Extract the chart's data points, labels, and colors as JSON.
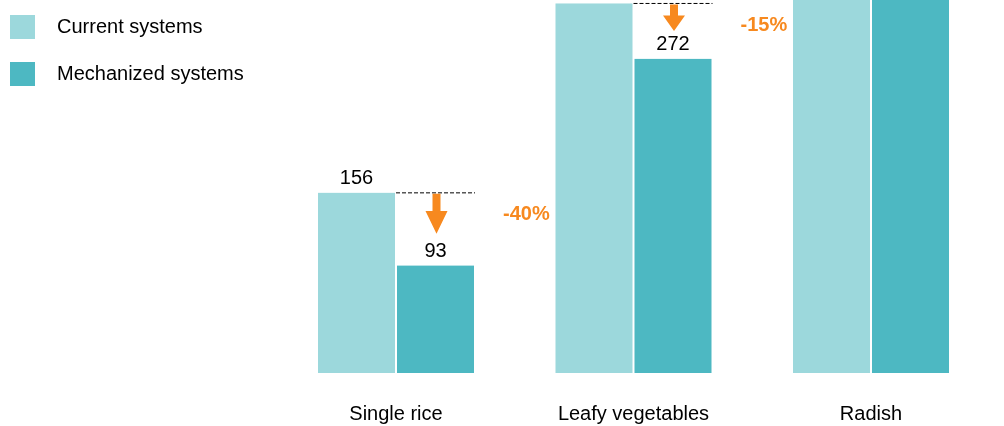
{
  "chart_data": {
    "type": "bar",
    "categories": [
      "Single rice",
      "Leafy vegetables",
      "Radish"
    ],
    "series": [
      {
        "name": "Current systems",
        "color": "#9cd8dc",
        "values": [
          156,
          320,
          323
        ],
        "value_labels": [
          "156",
          null,
          null
        ]
      },
      {
        "name": "Mechanized systems",
        "color": "#4db8c2",
        "values": [
          93,
          272,
          323
        ],
        "value_labels": [
          "93",
          "272",
          null
        ]
      }
    ],
    "ylim": [
      0,
      323
    ],
    "tick_labels": "x",
    "legend": "top left",
    "annotations": [
      "-40%",
      "-15%"
    ]
  }
}
